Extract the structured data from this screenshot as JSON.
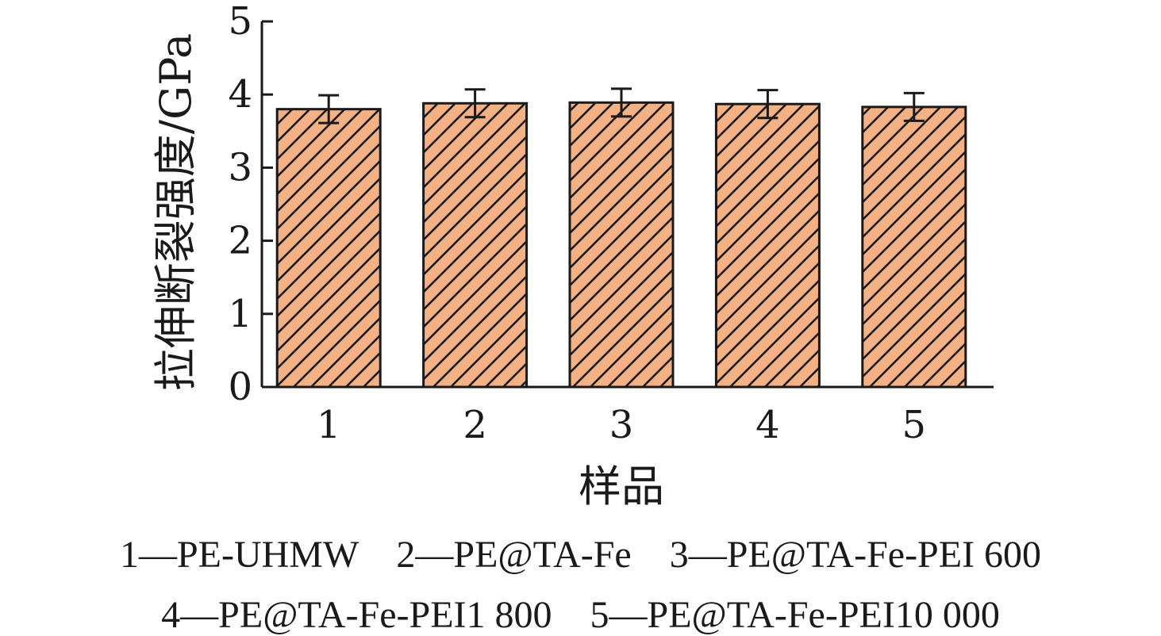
{
  "chart_data": {
    "type": "bar",
    "categories": [
      "1",
      "2",
      "3",
      "4",
      "5"
    ],
    "values": [
      3.8,
      3.88,
      3.89,
      3.87,
      3.83
    ],
    "errors": [
      0.19,
      0.19,
      0.19,
      0.19,
      0.19
    ],
    "title": "",
    "xlabel": "样品",
    "ylabel": "拉伸断裂强度/GPa",
    "ylim": [
      0,
      5
    ],
    "yticks": [
      0,
      1,
      2,
      3,
      4,
      5
    ],
    "bar_color": "#f4b183",
    "hatch": "diagonal",
    "grid": false
  },
  "notes": {
    "line1": "1—PE-UHMW    2—PE@TA-Fe    3—PE@TA-Fe-PEI 600",
    "line2": "4—PE@TA-Fe-PEI1 800    5—PE@TA-Fe-PEI10 000"
  }
}
